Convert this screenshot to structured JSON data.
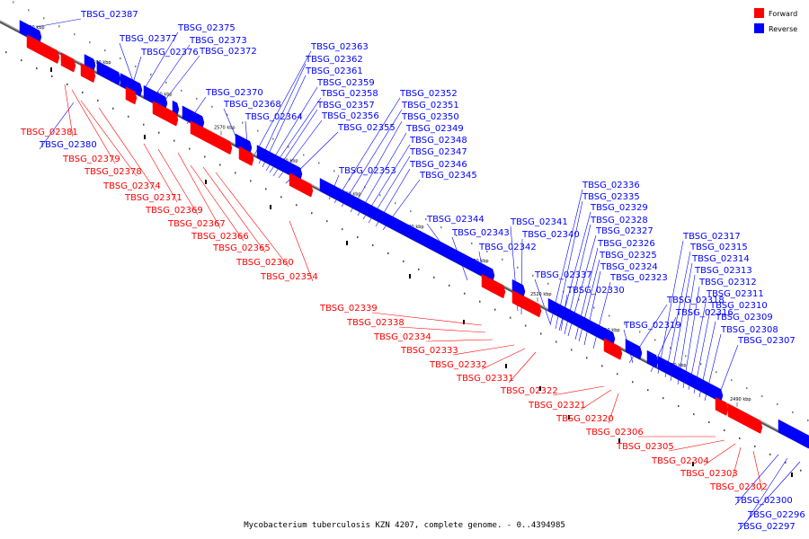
{
  "caption": "Mycobacterium tuberculosis KZN 4207, complete genome. - 0..4394985",
  "legend": [
    {
      "label": "Forward",
      "color": "#ff0000"
    },
    {
      "label": "Reverse",
      "color": "#0000ff"
    }
  ],
  "colors": {
    "forward": "#ff0000",
    "reverse": "#0000ff",
    "axis": "#555555"
  },
  "ticks": [
    "2600 kbp",
    "2590 kbp",
    "2580 kbp",
    "2570 kbp",
    "2560 kbp",
    "2550 kbp",
    "2540 kbp",
    "2530 kbp",
    "2520 kbp",
    "2510 kbp",
    "2500 kbp",
    "2490 kbp"
  ],
  "reverse_genes": [
    "TBSG_02387",
    "TBSG_02377",
    "TBSG_02375",
    "TBSG_02373",
    "TBSG_02376",
    "TBSG_02372",
    "TBSG_02370",
    "TBSG_02368",
    "TBSG_02364",
    "TBSG_02363",
    "TBSG_02362",
    "TBSG_02361",
    "TBSG_02359",
    "TBSG_02358",
    "TBSG_02357",
    "TBSG_02356",
    "TBSG_02355",
    "TBSG_02353",
    "TBSG_02352",
    "TBSG_02351",
    "TBSG_02350",
    "TBSG_02349",
    "TBSG_02348",
    "TBSG_02347",
    "TBSG_02346",
    "TBSG_02345",
    "TBSG_02344",
    "TBSG_02343",
    "TBSG_02342",
    "TBSG_02341",
    "TBSG_02340",
    "TBSG_02336",
    "TBSG_02335",
    "TBSG_02329",
    "TBSG_02328",
    "TBSG_02327",
    "TBSG_02326",
    "TBSG_02325",
    "TBSG_02324",
    "TBSG_02323",
    "TBSG_02337",
    "TBSG_02330",
    "TBSG_02318",
    "TBSG_02316",
    "TBSG_02319",
    "TBSG_02317",
    "TBSG_02315",
    "TBSG_02314",
    "TBSG_02313",
    "TBSG_02312",
    "TBSG_02311",
    "TBSG_02310",
    "TBSG_02309",
    "TBSG_02308",
    "TBSG_02307",
    "TBSG_02380",
    "TBSG_02300",
    "TBSG_02296",
    "TBSG_02297"
  ],
  "forward_genes": [
    "TBSG_02381",
    "TBSG_02379",
    "TBSG_02378",
    "TBSG_02374",
    "TBSG_02371",
    "TBSG_02369",
    "TBSG_02367",
    "TBSG_02366",
    "TBSG_02365",
    "TBSG_02360",
    "TBSG_02354",
    "TBSG_02339",
    "TBSG_02338",
    "TBSG_02334",
    "TBSG_02333",
    "TBSG_02332",
    "TBSG_02331",
    "TBSG_02322",
    "TBSG_02321",
    "TBSG_02320",
    "TBSG_02306",
    "TBSG_02305",
    "TBSG_02304",
    "TBSG_02303",
    "TBSG_02302"
  ]
}
